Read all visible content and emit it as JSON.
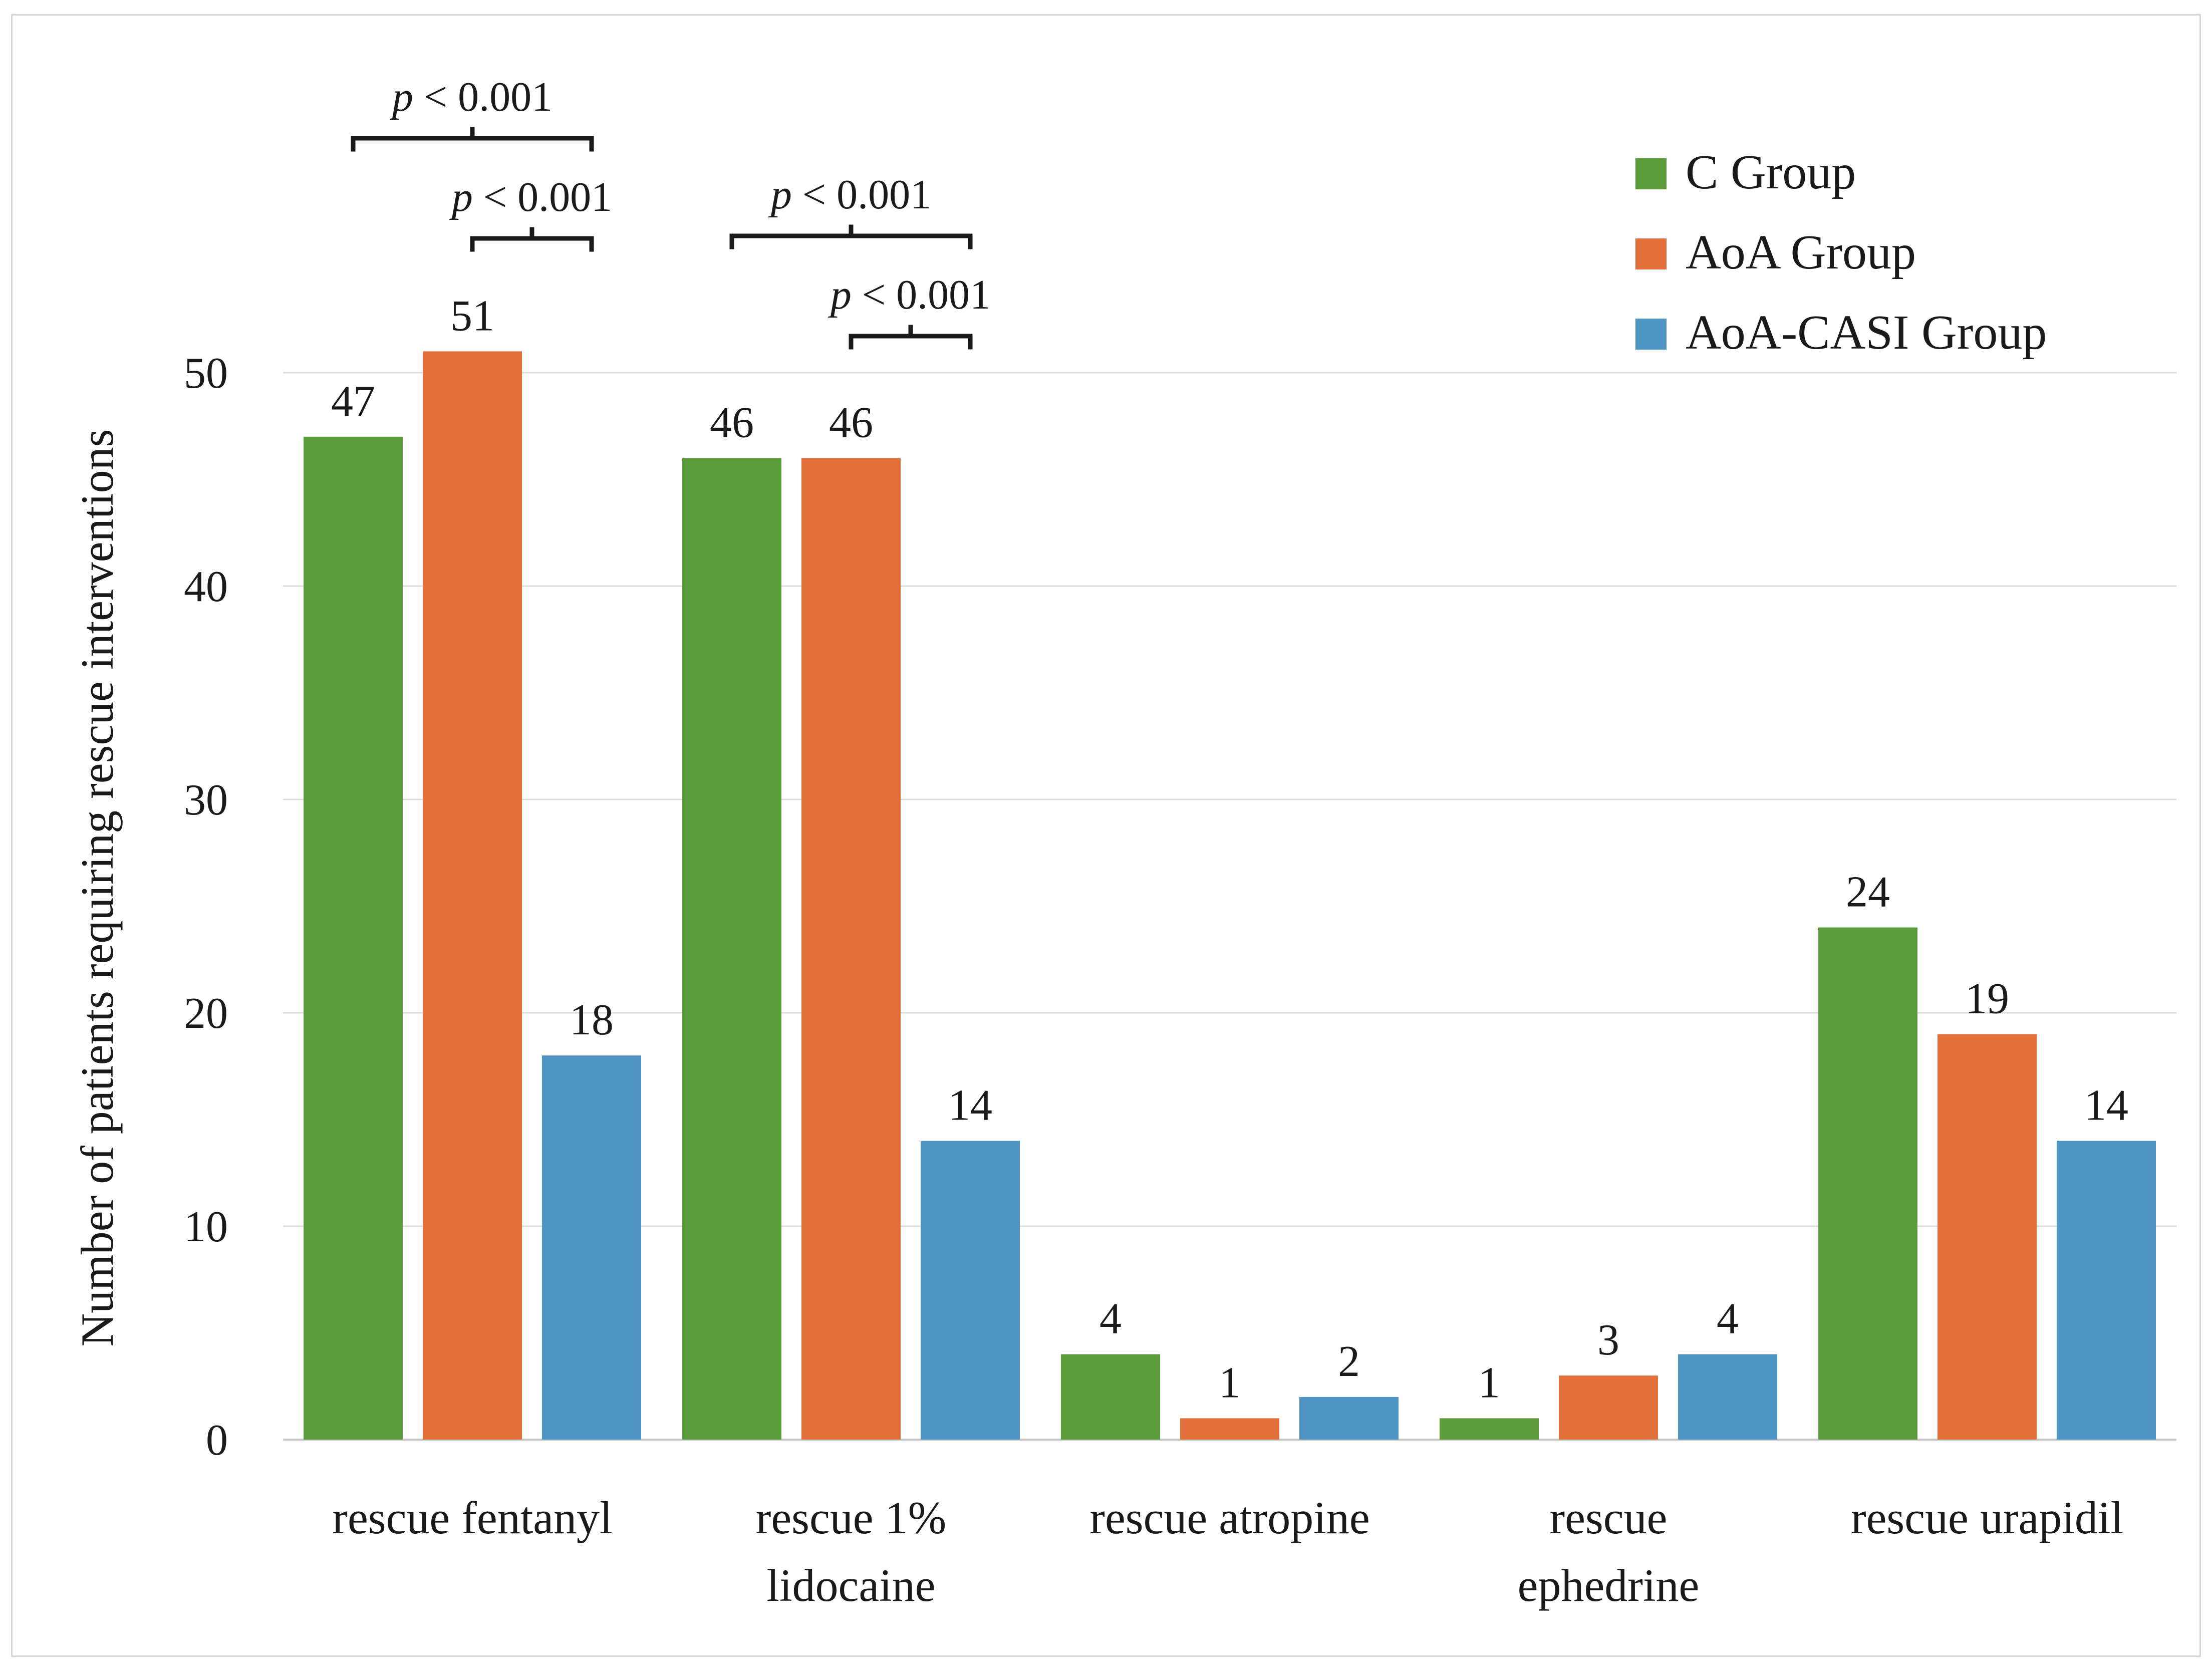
{
  "chart_data": {
    "type": "bar",
    "title": "",
    "xlabel": "",
    "ylabel": "Number of patients requiring rescue interventions",
    "ylim": [
      0,
      50
    ],
    "yticks": [
      0,
      10,
      20,
      30,
      40,
      50
    ],
    "grid": true,
    "legend_position": "top-right",
    "categories": [
      [
        "rescue fentanyl"
      ],
      [
        "rescue 1%",
        "lidocaine"
      ],
      [
        "rescue atropine"
      ],
      [
        "rescue",
        "ephedrine"
      ],
      [
        "rescue urapidil"
      ]
    ],
    "series": [
      {
        "name": "C Group",
        "color": "#5a9b3a",
        "values": [
          47,
          46,
          4,
          1,
          24
        ]
      },
      {
        "name": "AoA Group",
        "color": "#e2703a",
        "values": [
          51,
          46,
          1,
          3,
          19
        ]
      },
      {
        "name": "AoA-CASI Group",
        "color": "#4f95c4",
        "values": [
          18,
          14,
          2,
          4,
          14
        ]
      }
    ],
    "annotations": [
      {
        "category": 0,
        "from_series": 0,
        "to_series": 2,
        "label_italic": "p",
        "label": " < 0.001",
        "level": 2
      },
      {
        "category": 0,
        "from_series": 1,
        "to_series": 2,
        "label_italic": "p",
        "label": " < 0.001",
        "level": 1
      },
      {
        "category": 1,
        "from_series": 0,
        "to_series": 2,
        "label_italic": "p",
        "label": " < 0.001",
        "level": 2
      },
      {
        "category": 1,
        "from_series": 1,
        "to_series": 2,
        "label_italic": "p",
        "label": " < 0.001",
        "level": 1
      }
    ]
  }
}
